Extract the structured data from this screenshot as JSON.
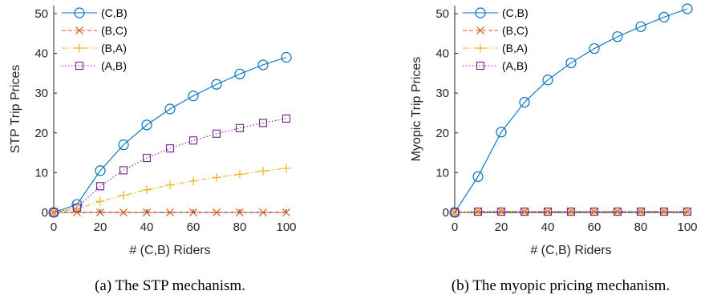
{
  "colors": {
    "axis": "#262626",
    "series_CB": "#0072BD",
    "series_BC": "#D95319",
    "series_BA": "#EDB120",
    "series_AB": "#7E2F8E"
  },
  "chart_data": [
    {
      "type": "line",
      "caption": "(a) The STP mechanism.",
      "xlabel": "# (C,B) Riders",
      "ylabel": "STP Trip Prices",
      "xlim": [
        0,
        100
      ],
      "ylim": [
        0,
        52
      ],
      "xticks": [
        0,
        20,
        40,
        60,
        80,
        100
      ],
      "yticks": [
        0,
        10,
        20,
        30,
        40,
        50
      ],
      "x": [
        0,
        10,
        20,
        30,
        40,
        50,
        60,
        70,
        80,
        90,
        100
      ],
      "legend_position": "top-left",
      "series": [
        {
          "name": "(C,B)",
          "marker": "circle",
          "style": "solid",
          "color": "#0072BD",
          "values": [
            0,
            2,
            10.5,
            17,
            22,
            26,
            29.3,
            32.2,
            34.8,
            37.1,
            39
          ]
        },
        {
          "name": "(B,C)",
          "marker": "x",
          "style": "dashed",
          "color": "#D95319",
          "values": [
            0,
            0,
            0,
            0,
            0,
            0,
            0,
            0,
            0,
            0,
            0
          ]
        },
        {
          "name": "(B,A)",
          "marker": "plus",
          "style": "dashdot",
          "color": "#EDB120",
          "values": [
            0,
            0.8,
            2.8,
            4.3,
            5.7,
            6.9,
            7.9,
            8.8,
            9.6,
            10.4,
            11.1
          ]
        },
        {
          "name": "(A,B)",
          "marker": "square",
          "style": "dotted",
          "color": "#7E2F8E",
          "values": [
            0,
            1.2,
            6.6,
            10.6,
            13.7,
            16.1,
            18.1,
            19.8,
            21.2,
            22.5,
            23.6
          ]
        }
      ]
    },
    {
      "type": "line",
      "caption": "(b) The myopic pricing mechanism.",
      "xlabel": "# (C,B) Riders",
      "ylabel": "Myopic Trip Prices",
      "xlim": [
        0,
        100
      ],
      "ylim": [
        0,
        52
      ],
      "xticks": [
        0,
        20,
        40,
        60,
        80,
        100
      ],
      "yticks": [
        0,
        10,
        20,
        30,
        40,
        50
      ],
      "x": [
        0,
        10,
        20,
        30,
        40,
        50,
        60,
        70,
        80,
        90,
        100
      ],
      "legend_position": "top-left",
      "series": [
        {
          "name": "(C,B)",
          "marker": "circle",
          "style": "solid",
          "color": "#0072BD",
          "values": [
            0,
            9,
            20.2,
            27.7,
            33.3,
            37.6,
            41.2,
            44.2,
            46.7,
            49.1,
            51.2
          ]
        },
        {
          "name": "(B,C)",
          "marker": "x",
          "style": "dashed",
          "color": "#D95319",
          "values": [
            0,
            0.2,
            0.2,
            0.2,
            0.2,
            0.2,
            0.2,
            0.2,
            0.2,
            0.2,
            0.2
          ]
        },
        {
          "name": "(B,A)",
          "marker": "plus",
          "style": "dashdot",
          "color": "#EDB120",
          "values": [
            0,
            0.2,
            0.2,
            0.2,
            0.2,
            0.2,
            0.2,
            0.2,
            0.2,
            0.2,
            0.2
          ]
        },
        {
          "name": "(A,B)",
          "marker": "square",
          "style": "dotted",
          "color": "#7E2F8E",
          "values": [
            0,
            0.2,
            0.2,
            0.2,
            0.2,
            0.2,
            0.2,
            0.2,
            0.2,
            0.2,
            0.2
          ]
        }
      ]
    }
  ]
}
